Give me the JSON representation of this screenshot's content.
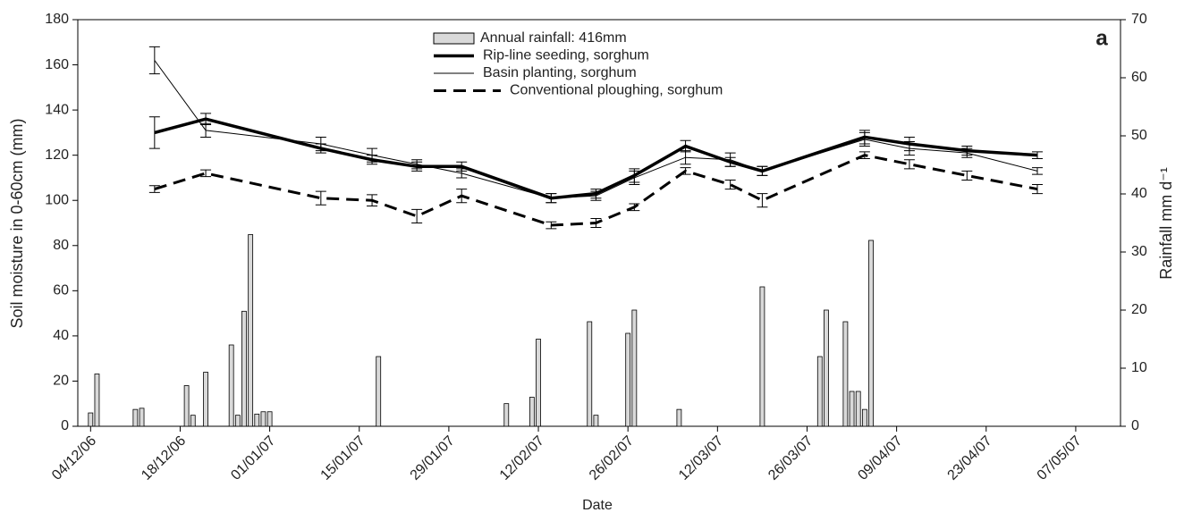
{
  "chart_data": {
    "type": "combo",
    "annotation": "a",
    "x_label": "Date",
    "y_label": "Soil moisture in 0-60cm (mm)",
    "y2_label": "Rainfall mm d⁻¹",
    "xlim": [
      "02/12/06",
      "14/05/07"
    ],
    "xticks": [
      "04/12/06",
      "18/12/06",
      "01/01/07",
      "15/01/07",
      "29/01/07",
      "12/02/07",
      "26/02/07",
      "12/03/07",
      "26/03/07",
      "09/04/07",
      "23/04/07",
      "07/05/07"
    ],
    "ylim": [
      0,
      180
    ],
    "yticks": [
      0,
      20,
      40,
      60,
      80,
      100,
      120,
      140,
      160,
      180
    ],
    "y2lim": [
      0,
      70
    ],
    "y2ticks": [
      0,
      10,
      20,
      30,
      40,
      50,
      60,
      70
    ],
    "legend": "top-center",
    "series": [
      {
        "name": "Annual rainfall: 416mm",
        "type": "bar",
        "axis": "y2",
        "color": "#d9d9d9",
        "x": [
          "04/12/06",
          "05/12/06",
          "11/12/06",
          "12/12/06",
          "19/12/06",
          "20/12/06",
          "22/12/06",
          "26/12/06",
          "27/12/06",
          "28/12/06",
          "29/12/06",
          "30/12/06",
          "31/12/06",
          "01/01/07",
          "18/01/07",
          "07/02/07",
          "11/02/07",
          "12/02/07",
          "20/02/07",
          "21/02/07",
          "26/02/07",
          "27/02/07",
          "06/03/07",
          "19/03/07",
          "28/03/07",
          "29/03/07",
          "01/04/07",
          "02/04/07",
          "03/04/07",
          "04/04/07",
          "05/04/07"
        ],
        "values": [
          2.3,
          9,
          2.9,
          3.1,
          7,
          1.9,
          9.3,
          14,
          1.9,
          19.8,
          33,
          2.1,
          2.5,
          2.5,
          12,
          3.9,
          5,
          15,
          18,
          1.9,
          16,
          20,
          2.9,
          24,
          12,
          20,
          18,
          6,
          6,
          2.9,
          32
        ]
      },
      {
        "name": "Rip-line seeding, sorghum",
        "type": "line",
        "color": "#000000",
        "line_width": 3.5,
        "dash": "none",
        "x": [
          "14/12/06",
          "22/12/06",
          "09/01/07",
          "17/01/07",
          "24/01/07",
          "31/01/07",
          "14/02/07",
          "21/02/07",
          "27/02/07",
          "07/03/07",
          "14/03/07",
          "19/03/07",
          "04/04/07",
          "11/04/07",
          "20/04/07",
          "01/05/07"
        ],
        "values": [
          130,
          136,
          123,
          118,
          115,
          115,
          101,
          103,
          111,
          124,
          117,
          113,
          128,
          125,
          122,
          120
        ],
        "errors": [
          7,
          2.5,
          2,
          2,
          2,
          2,
          2,
          2,
          3,
          2.5,
          2,
          2,
          3,
          3,
          2,
          1.5
        ]
      },
      {
        "name": "Basin planting, sorghum",
        "type": "line",
        "color": "#000000",
        "line_width": 1,
        "dash": "none",
        "x": [
          "14/12/06",
          "22/12/06",
          "09/01/07",
          "17/01/07",
          "24/01/07",
          "31/01/07",
          "14/02/07",
          "21/02/07",
          "27/02/07",
          "07/03/07",
          "14/03/07",
          "19/03/07",
          "04/04/07",
          "11/04/07",
          "20/04/07",
          "01/05/07"
        ],
        "values": [
          162,
          131,
          125,
          120,
          116,
          112,
          101,
          102,
          110,
          119,
          118,
          113,
          127,
          123,
          121,
          113
        ],
        "errors": [
          6,
          3,
          3,
          3,
          2,
          2,
          2,
          2,
          3,
          3,
          3,
          2,
          3,
          3,
          2,
          1.5
        ]
      },
      {
        "name": "Conventional ploughing, sorghum",
        "type": "line",
        "color": "#000000",
        "line_width": 3,
        "dash": "14 8",
        "x": [
          "14/12/06",
          "22/12/06",
          "09/01/07",
          "17/01/07",
          "24/01/07",
          "31/01/07",
          "14/02/07",
          "21/02/07",
          "27/02/07",
          "07/03/07",
          "14/03/07",
          "19/03/07",
          "04/04/07",
          "11/04/07",
          "20/04/07",
          "01/05/07"
        ],
        "values": [
          105,
          112,
          101,
          100,
          93,
          102,
          89,
          90,
          97,
          113,
          107,
          100,
          120,
          116,
          111,
          105
        ],
        "errors": [
          1.5,
          1.5,
          3,
          2.5,
          3,
          3,
          1.5,
          2,
          1.5,
          1.5,
          2,
          3,
          1.5,
          2,
          2,
          2
        ]
      }
    ]
  }
}
